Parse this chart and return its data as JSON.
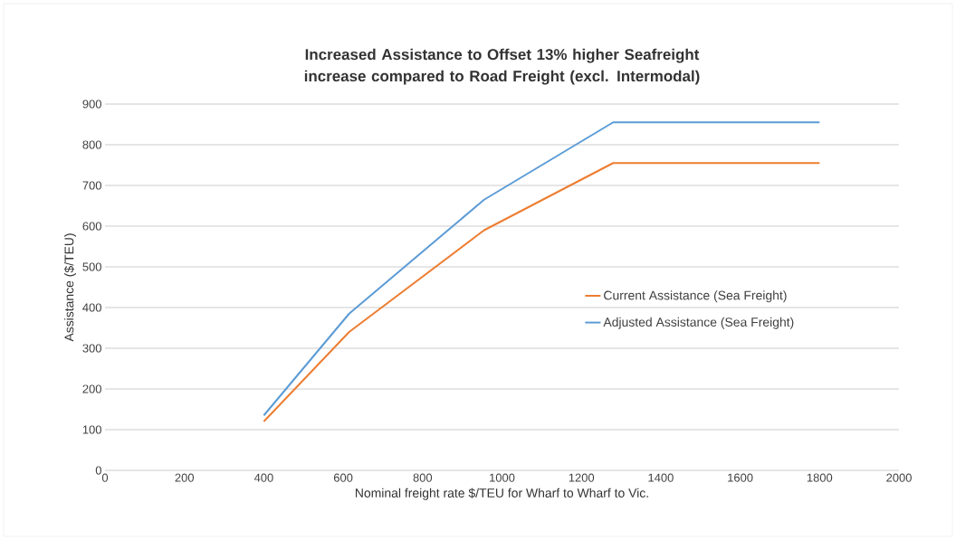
{
  "chart_data": {
    "type": "line",
    "title": "Increased Assistance to Offset 13% higher Seafreight increase compared to Road Freight (excl. Intermodal)",
    "xlabel": "Nominal freight rate $/TEU for Wharf to Wharf  to Vic.",
    "ylabel": "Assistance ($/TEU)",
    "series": [
      {
        "name": "Current Assistance (Sea Freight)",
        "color": "#ed7d31",
        "x": [
          400,
          615,
          955,
          1280,
          1800
        ],
        "values": [
          120,
          340,
          590,
          755,
          755
        ]
      },
      {
        "name": "Adjusted Assistance  (Sea Freight)",
        "color": "#5b9bd5",
        "x": [
          400,
          615,
          955,
          1280,
          1800
        ],
        "values": [
          135,
          385,
          665,
          855,
          855
        ]
      }
    ],
    "xlim": [
      0,
      2000
    ],
    "xticks": [
      0,
      200,
      400,
      600,
      800,
      1000,
      1200,
      1400,
      1600,
      1800,
      2000
    ],
    "ylim": [
      0,
      900
    ],
    "yticks": [
      0,
      100,
      200,
      300,
      400,
      500,
      600,
      700,
      800,
      900
    ],
    "grid": "y",
    "legend": "right",
    "marker": "none",
    "line_style": "solid"
  }
}
